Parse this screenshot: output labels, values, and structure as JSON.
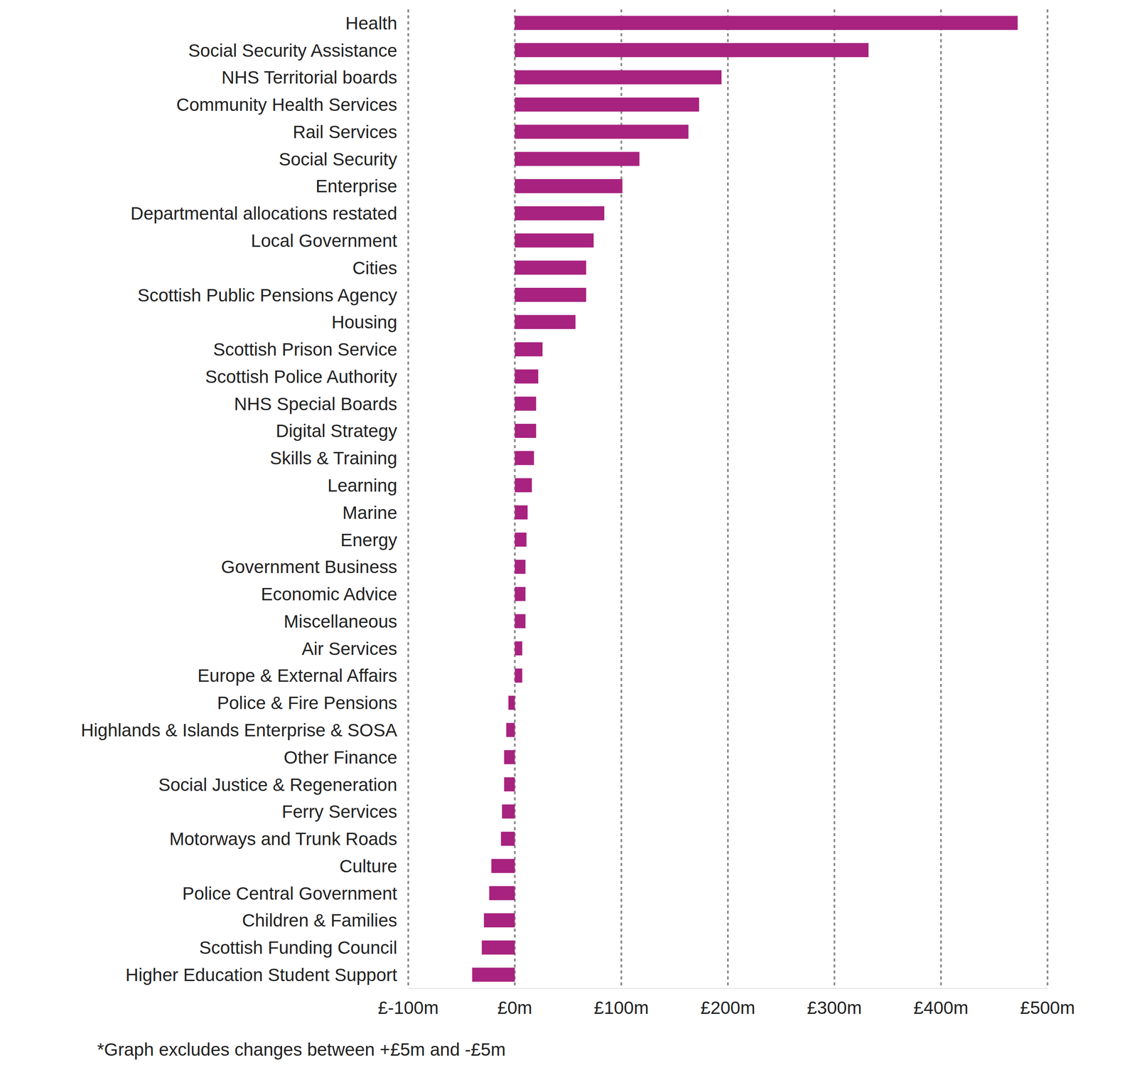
{
  "chart_data": {
    "type": "bar",
    "orientation": "horizontal",
    "color": "#a8227f",
    "grid": true,
    "footnote": "*Graph excludes changes between +£5m and -£5m",
    "categories": [
      "Health",
      "Social Security Assistance",
      "NHS Territorial boards",
      "Community Health Services",
      "Rail Services",
      "Social Security",
      "Enterprise",
      "Departmental allocations restated",
      "Local Government",
      "Cities",
      "Scottish Public Pensions Agency",
      "Housing",
      "Scottish Prison Service",
      "Scottish Police Authority",
      "NHS Special Boards",
      "Digital Strategy",
      "Skills & Training",
      "Learning",
      "Marine",
      "Energy",
      "Government Business",
      "Economic Advice",
      "Miscellaneous",
      "Air Services",
      "Europe & External Affairs",
      "Police & Fire Pensions",
      "Highlands & Islands Enterprise & SOSA",
      "Other Finance",
      "Social Justice & Regeneration",
      "Ferry Services",
      "Motorways and Trunk Roads",
      "Culture",
      "Police Central Government",
      "Children & Families",
      "Scottish Funding Council",
      "Higher Education Student Support"
    ],
    "values": [
      472,
      332,
      194,
      173,
      163,
      117,
      101,
      84,
      74,
      67,
      67,
      57,
      26,
      22,
      20,
      20,
      18,
      16,
      12,
      11,
      10,
      10,
      10,
      7,
      7,
      -6,
      -8,
      -10,
      -10,
      -12,
      -13,
      -22,
      -24,
      -29,
      -31,
      -40
    ],
    "xlim": [
      -100,
      500
    ],
    "xticks": [
      {
        "value": -100,
        "label": "£-100m"
      },
      {
        "value": 0,
        "label": "£0m"
      },
      {
        "value": 100,
        "label": "£100m"
      },
      {
        "value": 200,
        "label": "£200m"
      },
      {
        "value": 300,
        "label": "£300m"
      },
      {
        "value": 400,
        "label": "£400m"
      },
      {
        "value": 500,
        "label": "£500m"
      }
    ]
  }
}
